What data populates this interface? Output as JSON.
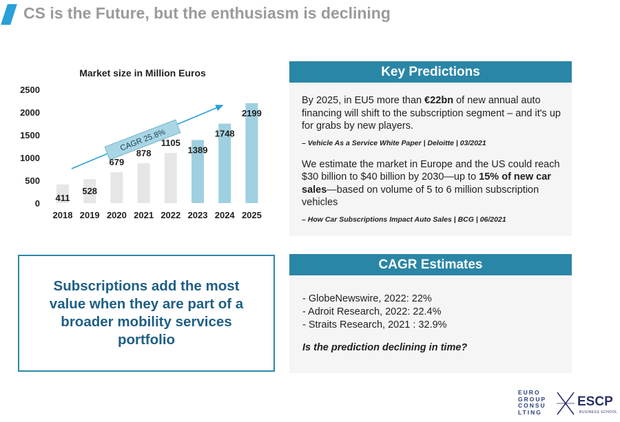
{
  "slide": {
    "title": "CS is the Future, but the enthusiasm is declining"
  },
  "chart_data": {
    "type": "bar",
    "title": "Market size in Million Euros",
    "categories": [
      "2018",
      "2019",
      "2020",
      "2021",
      "2022",
      "2023",
      "2024",
      "2025"
    ],
    "values": [
      411,
      528,
      679,
      878,
      1105,
      1389,
      1748,
      2199
    ],
    "data_labels": [
      "411",
      "528",
      "679",
      "878",
      "1105",
      "1389",
      "1748",
      "2199"
    ],
    "forecast_from": "2023",
    "ylim": [
      0,
      2500
    ],
    "yticks": [
      "0",
      "500",
      "1000",
      "1500",
      "2000",
      "2500"
    ],
    "grid": false,
    "annotation": "CAGR 25.8%",
    "colors": {
      "actual": "#e6e6e6",
      "forecast": "#9fd0e0",
      "arrow": "#2a9fd6"
    }
  },
  "key_predictions": {
    "header": "Key Predictions",
    "p1_pre": "By 2025, in EU5 more than ",
    "p1_bold": "€22bn",
    "p1_post": " of new annual auto financing will shift to the subscription segment – and it's up for grabs by new players.",
    "source1": "– Vehicle As a Service White Paper | Deloitte | 03/2021",
    "p2_pre": "We estimate the market in Europe and the US could reach $30 billion to $40 billion by 2030—up to ",
    "p2_bold": "15% of new car sales",
    "p2_post": "—based on volume of 5 to 6 million subscription vehicles",
    "source2": "– How Car Subscriptions Impact Auto Sales | BCG | 06/2021"
  },
  "callout": {
    "text": "Subscriptions add the most value when they are part of a broader mobility services portfolio"
  },
  "cagr_estimates": {
    "header": "CAGR Estimates",
    "items": [
      "- GlobeNewswire, 2022: 22%",
      "- Adroit Research, 2022: 22.4%",
      "- Straits Research, 2021 : 32.9%"
    ],
    "question": "Is the prediction declining in time?"
  },
  "logos": {
    "eurogroup_lines": [
      "EURO",
      "GROUP",
      "CONSU",
      "LTING"
    ],
    "escp": "ESCP",
    "escp_sub": "BUSINESS SCHOOL"
  }
}
